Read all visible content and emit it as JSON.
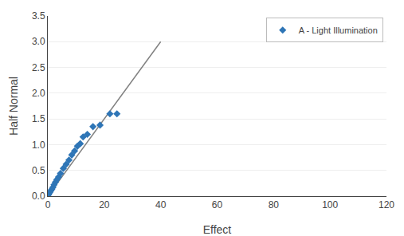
{
  "chart_data": {
    "type": "scatter",
    "xlabel": "Effect",
    "ylabel": "Half Normal",
    "series": [
      {
        "name": "A - Light Illumination",
        "type": "scatter",
        "marker": "diamond",
        "color": "#2E75B6",
        "x": [
          0.3,
          0.7,
          1.0,
          1.4,
          1.8,
          2.2,
          2.7,
          3.2,
          3.8,
          4.5,
          5.5,
          6.5,
          7.5,
          8.5,
          9.5,
          10.5,
          11.5,
          12.5,
          14.0,
          16.0,
          18.5,
          22.0,
          24.5
        ],
        "values": [
          0.03,
          0.07,
          0.1,
          0.13,
          0.17,
          0.22,
          0.27,
          0.32,
          0.37,
          0.44,
          0.54,
          0.62,
          0.7,
          0.8,
          0.88,
          0.97,
          1.02,
          1.15,
          1.2,
          1.35,
          1.38,
          1.6,
          1.6
        ]
      },
      {
        "type": "line",
        "line_style": "solid",
        "color": "#808080",
        "x": [
          0,
          40
        ],
        "values": [
          0,
          3.0
        ]
      }
    ],
    "xlim": [
      0,
      120
    ],
    "ylim": [
      0,
      3.5
    ],
    "xticks": [
      0,
      20,
      40,
      60,
      80,
      100,
      120
    ],
    "yticks": [
      {
        "value": 0,
        "label": "0.0"
      },
      0.5,
      {
        "value": 1,
        "label": "1.0"
      },
      1.5,
      {
        "value": 2,
        "label": "2.0"
      },
      2.5,
      {
        "value": 3,
        "label": "3.0"
      },
      3.5
    ],
    "grid": "y",
    "legend": "upper right"
  }
}
